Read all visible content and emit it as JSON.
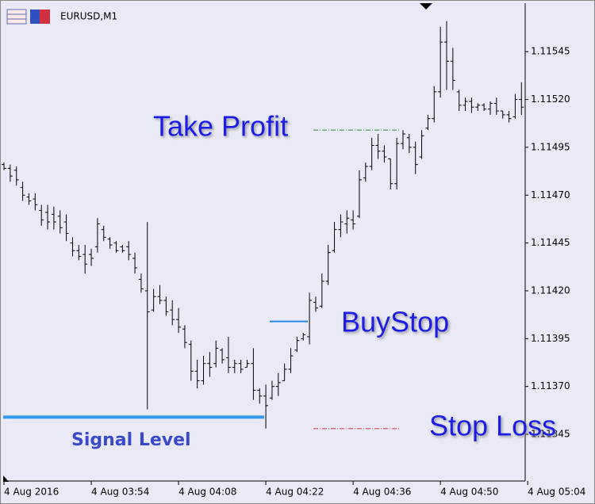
{
  "chart_data": {
    "type": "ohlc",
    "title": "EURUSD,M1",
    "xticks": [
      {
        "value": 0,
        "label": "4 Aug 2016"
      },
      {
        "value": 14,
        "label": "4 Aug 03:54"
      },
      {
        "value": 28,
        "label": "4 Aug 04:08"
      },
      {
        "value": 42,
        "label": "4 Aug 04:22"
      },
      {
        "value": 56,
        "label": "4 Aug 04:36"
      },
      {
        "value": 70,
        "label": "4 Aug 04:50"
      },
      {
        "value": 84,
        "label": "4 Aug 05:04"
      }
    ],
    "xlim": [
      -0.64,
      83.6
    ],
    "ylim": [
      1.11321,
      1.11572
    ],
    "yticks": [
      1.11545,
      {
        "value": 1.1152,
        "label": "1.11520"
      },
      1.11495,
      {
        "value": 1.1147,
        "label": "1.11470"
      },
      1.11445,
      {
        "value": 1.1142,
        "label": "1.11420"
      },
      1.11395,
      {
        "value": 1.1137,
        "label": "1.11370"
      },
      1.11345
    ],
    "color": "#000000",
    "open": [
      1.11486,
      1.11484,
      1.11483,
      1.11474,
      1.11469,
      1.11468,
      1.11462,
      1.11461,
      1.1146,
      1.11459,
      1.11456,
      1.11445,
      1.11441,
      1.11439,
      1.11439,
      1.11443,
      1.11452,
      1.11447,
      1.11445,
      1.11443,
      1.11443,
      1.11437,
      1.11426,
      1.1142,
      1.1141,
      1.11417,
      1.11415,
      1.1141,
      1.11405,
      1.114,
      1.11392,
      1.11378,
      1.11373,
      1.11382,
      1.11382,
      1.11389,
      1.11385,
      1.1138,
      1.11382,
      1.1138,
      1.11382,
      1.11368,
      1.11365,
      1.11364,
      1.1137,
      1.11373,
      1.11379,
      1.11389,
      1.11395,
      1.11396,
      1.11414,
      1.11412,
      1.11425,
      1.11441,
      1.11452,
      1.11455,
      1.11457,
      1.11459,
      1.11479,
      1.11485,
      1.11496,
      1.11493,
      1.11489,
      1.11476,
      1.11497,
      1.115,
      1.11495,
      1.1149,
      1.11505,
      1.1151,
      1.11524,
      1.1155,
      1.1154,
      1.11524,
      1.11517,
      1.11519,
      1.11516,
      1.11517,
      1.11515,
      1.11518,
      1.11514,
      1.11512,
      1.11511,
      1.1152
    ],
    "high": [
      1.11487,
      1.11486,
      1.11485,
      1.11477,
      1.11471,
      1.11471,
      1.11465,
      1.11465,
      1.11464,
      1.11462,
      1.1146,
      1.11448,
      1.11444,
      1.11444,
      1.11442,
      1.11458,
      1.11454,
      1.11448,
      1.11446,
      1.11444,
      1.11446,
      1.1144,
      1.11429,
      1.11456,
      1.11421,
      1.11423,
      1.11417,
      1.11415,
      1.11411,
      1.11402,
      1.11394,
      1.11384,
      1.11386,
      1.11388,
      1.11394,
      1.1139,
      1.11396,
      1.11384,
      1.11384,
      1.11384,
      1.1139,
      1.11369,
      1.11371,
      1.11373,
      1.11377,
      1.11382,
      1.1139,
      1.11396,
      1.11398,
      1.11419,
      1.11417,
      1.11429,
      1.11444,
      1.11456,
      1.1146,
      1.11462,
      1.11462,
      1.11483,
      1.11487,
      1.115,
      1.11502,
      1.11496,
      1.11489,
      1.115,
      1.11504,
      1.11502,
      1.11498,
      1.11504,
      1.11512,
      1.11527,
      1.11558,
      1.11561,
      1.11547,
      1.11525,
      1.11521,
      1.11521,
      1.11518,
      1.11518,
      1.11519,
      1.11521,
      1.11514,
      1.11514,
      1.11523,
      1.11529
    ],
    "low": [
      1.11483,
      1.11477,
      1.11475,
      1.11467,
      1.11465,
      1.11462,
      1.11454,
      1.11452,
      1.11452,
      1.1145,
      1.11446,
      1.11438,
      1.11436,
      1.11429,
      1.11433,
      1.1144,
      1.11446,
      1.11442,
      1.1144,
      1.1144,
      1.11436,
      1.11429,
      1.11419,
      1.11358,
      1.11409,
      1.11413,
      1.11407,
      1.11402,
      1.11398,
      1.1139,
      1.11373,
      1.11369,
      1.11371,
      1.11375,
      1.1138,
      1.11382,
      1.11377,
      1.11377,
      1.11377,
      1.1138,
      1.11363,
      1.11361,
      1.11348,
      1.11363,
      1.11365,
      1.11373,
      1.11377,
      1.11388,
      1.11394,
      1.11392,
      1.11409,
      1.11411,
      1.11423,
      1.1144,
      1.11448,
      1.1145,
      1.11452,
      1.11458,
      1.11477,
      1.11483,
      1.11489,
      1.11487,
      1.11473,
      1.11473,
      1.11494,
      1.11492,
      1.11481,
      1.11489,
      1.11504,
      1.11508,
      1.11521,
      1.11525,
      1.11525,
      1.11514,
      1.11514,
      1.11513,
      1.11514,
      1.11514,
      1.11512,
      1.11512,
      1.1151,
      1.11508,
      1.1151,
      1.11512
    ],
    "close": [
      1.11484,
      1.1148,
      1.11478,
      1.1147,
      1.11467,
      1.11465,
      1.11457,
      1.11456,
      1.11456,
      1.11453,
      1.1145,
      1.11441,
      1.11438,
      1.11434,
      1.11437,
      1.11455,
      1.11448,
      1.11444,
      1.11441,
      1.11441,
      1.11439,
      1.11432,
      1.11421,
      1.11409,
      1.11417,
      1.11415,
      1.11409,
      1.11405,
      1.11401,
      1.11393,
      1.11378,
      1.11373,
      1.11382,
      1.1138,
      1.1139,
      1.11384,
      1.1138,
      1.11382,
      1.11379,
      1.11382,
      1.11368,
      1.11365,
      1.1136,
      1.1137,
      1.11372,
      1.11379,
      1.11386,
      1.11394,
      1.11397,
      1.11415,
      1.11411,
      1.11425,
      1.1144,
      1.11452,
      1.11456,
      1.11458,
      1.11455,
      1.11478,
      1.11485,
      1.11496,
      1.11493,
      1.1149,
      1.11476,
      1.11497,
      1.11502,
      1.11495,
      1.11486,
      1.11501,
      1.1151,
      1.11524,
      1.1155,
      1.1154,
      1.1153,
      1.11517,
      1.11519,
      1.11516,
      1.11517,
      1.11515,
      1.11518,
      1.11514,
      1.11512,
      1.1151,
      1.1152,
      1.11516
    ],
    "levels": [
      {
        "name": "Take Profit",
        "value": 1.11504,
        "color": "#2e8b2e"
      },
      {
        "name": "BuyStop",
        "value": 1.11404,
        "color": "#1e88e5"
      },
      {
        "name": "Stop Loss",
        "value": 1.11348,
        "color": "#d0304a"
      },
      {
        "name": "Signal Level",
        "value": 1.11354,
        "color": "#3399ee"
      }
    ]
  }
}
